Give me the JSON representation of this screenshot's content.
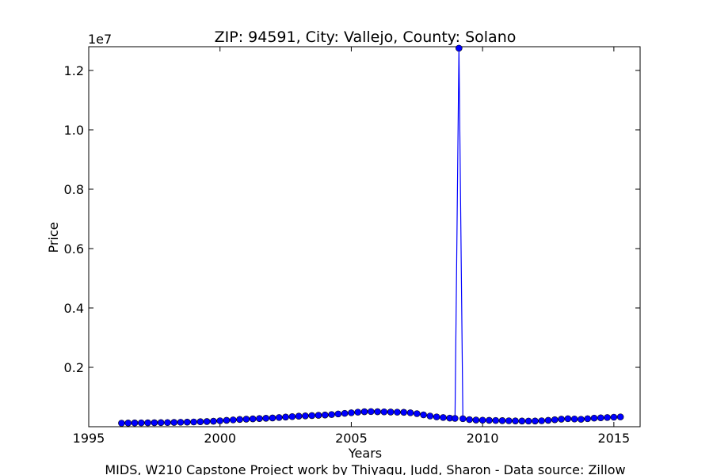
{
  "chart_data": {
    "type": "line",
    "title": "ZIP: 94591, City: Vallejo, County: Solano",
    "xlabel": "Years",
    "ylabel": "Price",
    "y_offset_label": "1e7",
    "footer": "MIDS, W210 Capstone Project work by Thiyagu, Judd, Sharon  -  Data source: Zillow",
    "xlim": [
      1995,
      2016
    ],
    "ylim": [
      0,
      12800000
    ],
    "x_ticks": [
      1995,
      2000,
      2005,
      2010,
      2015
    ],
    "x_tick_labels": [
      "1995",
      "2000",
      "2005",
      "2010",
      "2015"
    ],
    "y_ticks": [
      2000000,
      4000000,
      6000000,
      8000000,
      10000000,
      12000000
    ],
    "y_tick_labels": [
      "0.2",
      "0.4",
      "0.6",
      "0.8",
      "1.0",
      "1.2"
    ],
    "grid": false,
    "line_color": "#0000ff",
    "marker_color": "#0000ff",
    "series": [
      {
        "x": [
          1996.25,
          1996.5,
          1996.75,
          1997.0,
          1997.25,
          1997.5,
          1997.75,
          1998.0,
          1998.25,
          1998.5,
          1998.75,
          1999.0,
          1999.25,
          1999.5,
          1999.75,
          2000.0,
          2000.25,
          2000.5,
          2000.75,
          2001.0,
          2001.25,
          2001.5,
          2001.75,
          2002.0,
          2002.25,
          2002.5,
          2002.75,
          2003.0,
          2003.25,
          2003.5,
          2003.75,
          2004.0,
          2004.25,
          2004.5,
          2004.75,
          2005.0,
          2005.25,
          2005.5,
          2005.75,
          2006.0,
          2006.25,
          2006.5,
          2006.75,
          2007.0,
          2007.25,
          2007.5,
          2007.75,
          2008.0,
          2008.25,
          2008.5,
          2008.75,
          2008.95,
          2009.1,
          2009.25,
          2009.5,
          2009.75,
          2010.0,
          2010.25,
          2010.5,
          2010.75,
          2011.0,
          2011.25,
          2011.5,
          2011.75,
          2012.0,
          2012.25,
          2012.5,
          2012.75,
          2013.0,
          2013.25,
          2013.5,
          2013.75,
          2014.0,
          2014.25,
          2014.5,
          2014.75,
          2015.0,
          2015.25
        ],
        "y": [
          120000,
          125000,
          128000,
          130000,
          132000,
          135000,
          138000,
          140000,
          145000,
          150000,
          155000,
          160000,
          168000,
          175000,
          185000,
          200000,
          215000,
          230000,
          245000,
          255000,
          265000,
          275000,
          285000,
          295000,
          310000,
          325000,
          340000,
          355000,
          365000,
          375000,
          385000,
          395000,
          410000,
          430000,
          450000,
          470000,
          490000,
          505000,
          510000,
          505000,
          500000,
          495000,
          490000,
          485000,
          470000,
          440000,
          400000,
          360000,
          330000,
          310000,
          290000,
          280000,
          12750000,
          270000,
          240000,
          225000,
          220000,
          215000,
          210000,
          205000,
          200000,
          195000,
          192000,
          190000,
          192000,
          200000,
          215000,
          235000,
          255000,
          270000,
          260000,
          250000,
          270000,
          290000,
          300000,
          310000,
          320000,
          330000
        ]
      }
    ]
  }
}
